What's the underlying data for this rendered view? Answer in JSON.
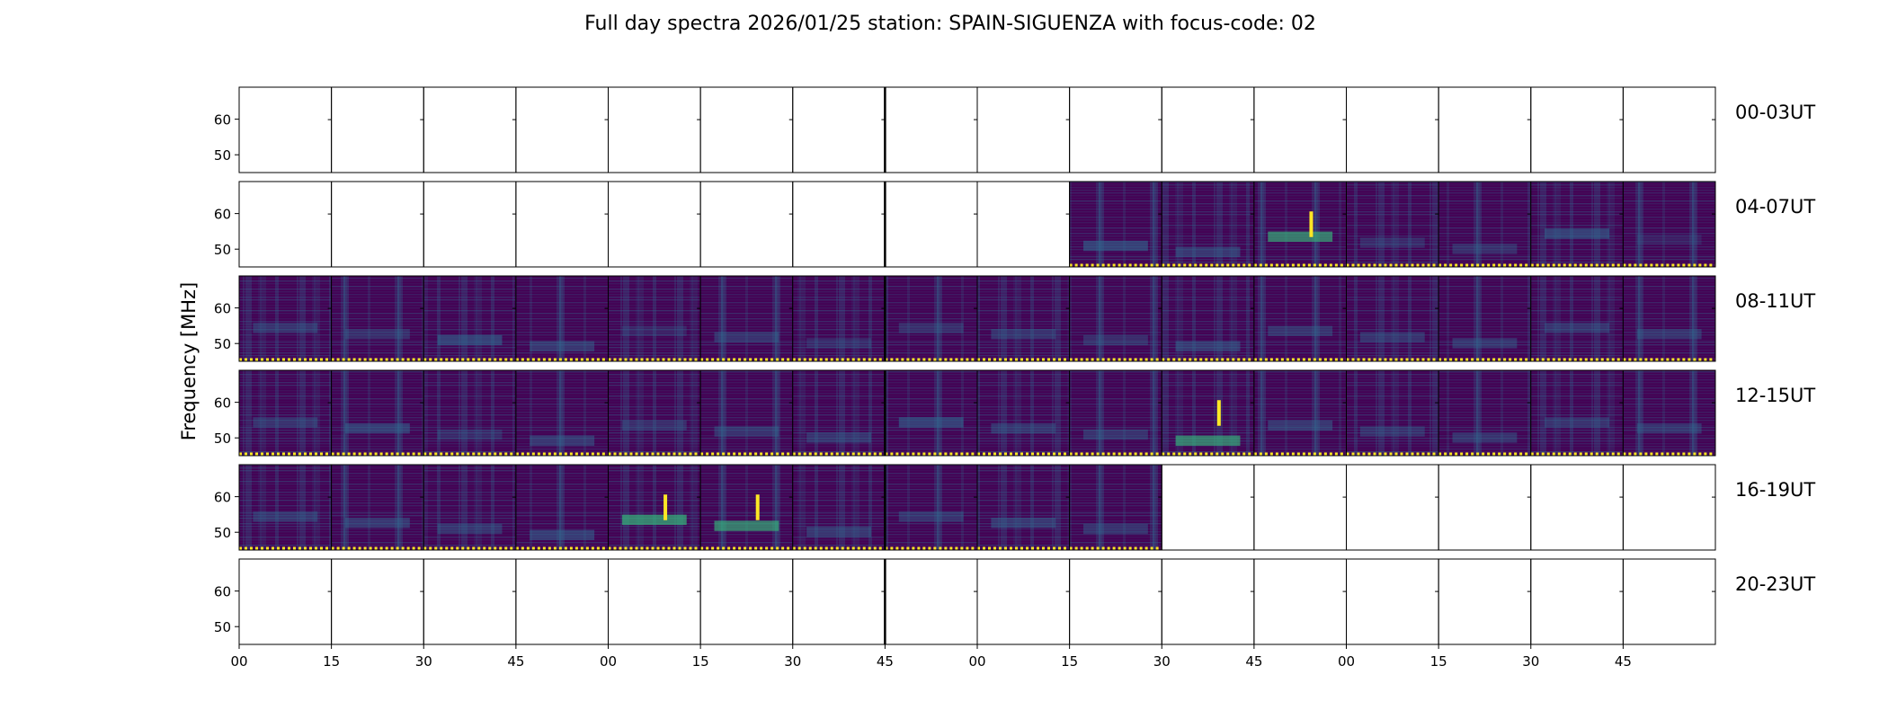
{
  "chart_data": {
    "type": "heatmap",
    "title": "Full day spectra 2026/01/25 station: SPAIN-SIGUENZA with focus-code: 02",
    "ylabel": "Frequency [MHz]",
    "xlabel": "",
    "ylim": [
      45,
      69
    ],
    "y_ticks": [
      50,
      60
    ],
    "x_tick_labels": [
      "00",
      "15",
      "30",
      "45",
      "00",
      "15",
      "30",
      "45",
      "00",
      "15",
      "30",
      "45",
      "00",
      "15",
      "30",
      "45"
    ],
    "colormap": "viridis",
    "colors": {
      "low": "#440154",
      "mid": "#31688e",
      "high": "#35b779",
      "peak": "#fde725",
      "status_marker": "#fde725"
    },
    "rows": [
      {
        "label": "00-03UT",
        "coverage": [
          0,
          0,
          0,
          0,
          0,
          0,
          0,
          0,
          0,
          0,
          0,
          0,
          0,
          0,
          0,
          0
        ],
        "intensity": [
          0,
          0,
          0,
          0,
          0,
          0,
          0,
          0,
          0,
          0,
          0,
          0,
          0,
          0,
          0,
          0
        ]
      },
      {
        "label": "04-07UT",
        "coverage": [
          0,
          0,
          0,
          0,
          0,
          0,
          0,
          0,
          0,
          1,
          1,
          1,
          1,
          1,
          1,
          1
        ],
        "intensity": [
          0,
          0,
          0,
          0,
          0,
          0,
          0,
          0,
          0,
          0.45,
          0.35,
          0.5,
          0.2,
          0.25,
          0.45,
          0.1
        ]
      },
      {
        "label": "08-11UT",
        "coverage": [
          1,
          1,
          1,
          1,
          1,
          1,
          1,
          1,
          1,
          1,
          1,
          1,
          1,
          1,
          1,
          1
        ],
        "intensity": [
          0.3,
          0.25,
          0.45,
          0.35,
          0.15,
          0.3,
          0.2,
          0.25,
          0.3,
          0.25,
          0.35,
          0.3,
          0.3,
          0.3,
          0.3,
          0.3
        ]
      },
      {
        "label": "12-15UT",
        "coverage": [
          1,
          1,
          1,
          1,
          1,
          1,
          1,
          1,
          1,
          1,
          1,
          1,
          1,
          1,
          1,
          1
        ],
        "intensity": [
          0.3,
          0.4,
          0.2,
          0.35,
          0.25,
          0.3,
          0.3,
          0.45,
          0.3,
          0.3,
          0.5,
          0.35,
          0.25,
          0.3,
          0.3,
          0.3
        ]
      },
      {
        "label": "16-19UT",
        "coverage": [
          1,
          1,
          1,
          1,
          1,
          1,
          1,
          1,
          1,
          1,
          0,
          0,
          0,
          0,
          0,
          0
        ],
        "intensity": [
          0.3,
          0.35,
          0.3,
          0.4,
          0.55,
          0.5,
          0.35,
          0.3,
          0.35,
          0.3,
          0,
          0,
          0,
          0,
          0,
          0
        ]
      },
      {
        "label": "20-23UT",
        "coverage": [
          0,
          0,
          0,
          0,
          0,
          0,
          0,
          0,
          0,
          0,
          0,
          0,
          0,
          0,
          0,
          0
        ],
        "intensity": [
          0,
          0,
          0,
          0,
          0,
          0,
          0,
          0,
          0,
          0,
          0,
          0,
          0,
          0,
          0,
          0
        ]
      }
    ],
    "grid": false,
    "legend": "none"
  }
}
